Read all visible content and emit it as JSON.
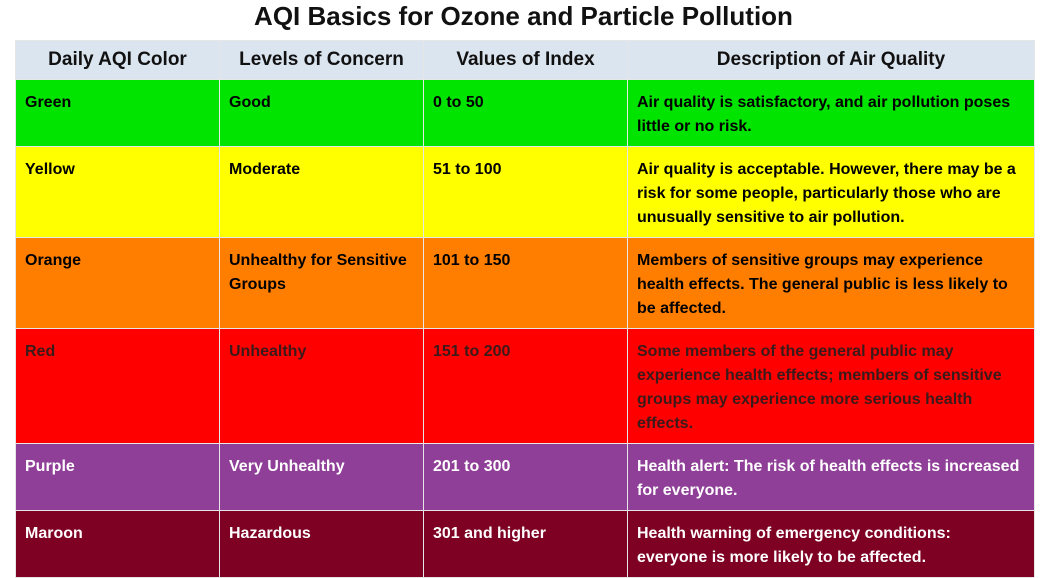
{
  "title": "AQI Basics for Ozone and Particle Pollution",
  "headers": [
    "Daily AQI Color",
    "Levels of Concern",
    "Values of Index",
    "Description of Air Quality"
  ],
  "rows": [
    {
      "color_name": "Green",
      "concern": "Good",
      "values": "0 to 50",
      "description": "Air quality is satisfactory, and air pollution poses little or no risk.",
      "bg": "#00e400"
    },
    {
      "color_name": "Yellow",
      "concern": "Moderate",
      "values": "51 to 100",
      "description": "Air quality is acceptable. However, there may be a risk for some people, particularly those who are unusually sensitive to air pollution.",
      "bg": "#ffff00"
    },
    {
      "color_name": "Orange",
      "concern": "Unhealthy for Sensitive Groups",
      "values": "101 to 150",
      "description": "Members of sensitive groups may experience health effects. The general public is less likely to be affected.",
      "bg": "#ff7e00"
    },
    {
      "color_name": "Red",
      "concern": "Unhealthy",
      "values": "151 to 200",
      "description": "Some members of the general public may experience health effects; members of sensitive groups may experience more serious health effects.",
      "bg": "#ff0000"
    },
    {
      "color_name": "Purple",
      "concern": "Very Unhealthy",
      "values": "201 to 300",
      "description": "Health alert: The risk of health effects is increased for everyone.",
      "bg": "#8f3f97"
    },
    {
      "color_name": "Maroon",
      "concern": "Hazardous",
      "values": "301 and higher",
      "description": "Health warning of emergency conditions: everyone is more likely to be affected.",
      "bg": "#7e0023"
    }
  ]
}
